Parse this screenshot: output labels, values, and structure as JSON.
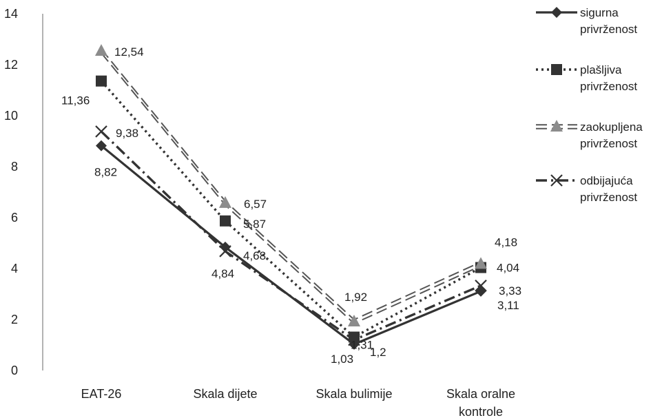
{
  "chart_data": {
    "type": "line",
    "title": "",
    "xlabel": "",
    "ylabel": "",
    "categories": [
      [
        "EAT-26"
      ],
      [
        "Skala dijete"
      ],
      [
        "Skala bulimije"
      ],
      [
        "Skala oralne",
        "kontrole"
      ]
    ],
    "ylim": [
      0,
      14
    ],
    "yticks": [
      "0",
      "2",
      "4",
      "6",
      "8",
      "10",
      "12",
      "14"
    ],
    "grid": false,
    "legend_position": "right",
    "series": [
      {
        "key": "sigurna",
        "name": [
          "sigurna",
          "privrženost"
        ],
        "values": [
          8.82,
          4.84,
          1.03,
          3.11
        ],
        "labels": [
          "8,82",
          "4,84",
          "1,03",
          "3,11"
        ],
        "marker": "diamond",
        "line_style": "solid",
        "color": "#333333"
      },
      {
        "key": "plasljiva",
        "name": [
          "plašljiva",
          "privrženost"
        ],
        "values": [
          11.36,
          5.87,
          1.31,
          4.04
        ],
        "labels": [
          "11,36",
          "5,87",
          "1,31",
          "4,04"
        ],
        "marker": "square",
        "line_style": "dotted",
        "color": "#333333"
      },
      {
        "key": "zaokupljena",
        "name": [
          "zaokupljena",
          "privrženost"
        ],
        "values": [
          12.54,
          6.57,
          1.92,
          4.18
        ],
        "labels": [
          "12,54",
          "6,57",
          "1,92",
          "4,18"
        ],
        "marker": "triangle",
        "line_style": "double-dashed",
        "color": "#555555",
        "marker_color": "#8c8c8c"
      },
      {
        "key": "odbijajuca",
        "name": [
          "odbijajuća",
          "privrženost"
        ],
        "values": [
          9.38,
          4.68,
          1.2,
          3.33
        ],
        "labels": [
          "9,38",
          "4,68",
          "1,2",
          "3,33"
        ],
        "marker": "x",
        "line_style": "dash-dot",
        "color": "#333333"
      }
    ]
  }
}
